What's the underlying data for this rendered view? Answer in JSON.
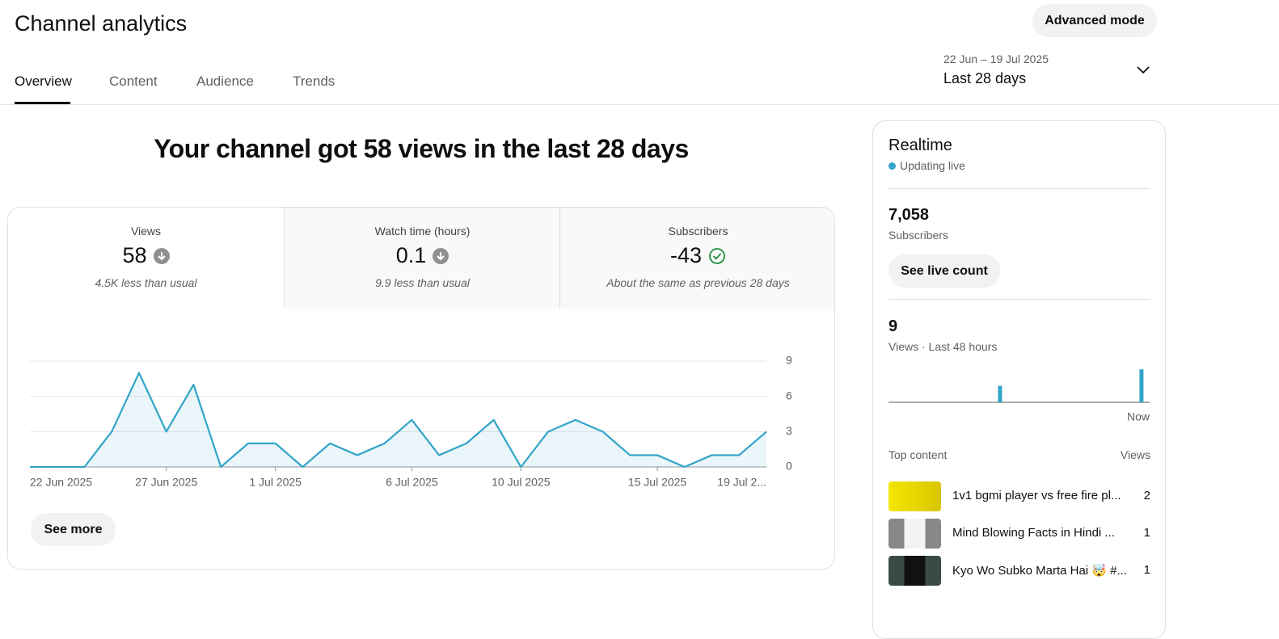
{
  "header": {
    "title": "Channel analytics",
    "advanced_button": "Advanced mode"
  },
  "tabs": [
    "Overview",
    "Content",
    "Audience",
    "Trends"
  ],
  "date_range": {
    "dates": "22 Jun – 19 Jul 2025",
    "label": "Last 28 days"
  },
  "headline": "Your channel got 58 views in the last 28 days",
  "metrics": [
    {
      "label": "Views",
      "value": 58,
      "note": "4.5K less than usual"
    },
    {
      "label": "Watch time (hours)",
      "value": 0.1,
      "note": "9.9 less than usual"
    },
    {
      "label": "Subscribers",
      "value": -43,
      "note": "About the same as previous 28 days"
    }
  ],
  "see_more": "See more",
  "realtime": {
    "title": "Realtime",
    "status": "Updating live",
    "subscribers_count": "7,058",
    "subscribers_label": "Subscribers",
    "live_count_button": "See live count",
    "views_count": 9,
    "views_label": "Views · Last 48 hours",
    "top_content_label": "Top content",
    "top_content_views_label": "Views",
    "top_content": [
      {
        "title": "1v1 bgmi player vs free fire pl...",
        "views": 2
      },
      {
        "title": "Mind Blowing Facts in Hindi ...",
        "views": 1
      },
      {
        "title": "Kyo Wo Subko Marta Hai 🤯 #...",
        "views": 1
      }
    ]
  },
  "chart_data": [
    {
      "type": "line",
      "categories": [
        "22 Jun 2025",
        null,
        null,
        null,
        null,
        "27 Jun 2025",
        null,
        null,
        null,
        "1 Jul 2025",
        null,
        null,
        null,
        null,
        "6 Jul 2025",
        null,
        null,
        null,
        "10 Jul 2025",
        null,
        null,
        null,
        null,
        "15 Jul 2025",
        null,
        null,
        null,
        "19 Jul 2..."
      ],
      "values": [
        0,
        0,
        0,
        3,
        8,
        3,
        7,
        0,
        2,
        2,
        0,
        2,
        1,
        2,
        4,
        1,
        2,
        4,
        0,
        3,
        4,
        3,
        1,
        1,
        0,
        1,
        1,
        3
      ],
      "color": "#32a4c9",
      "ylim": [
        0,
        9
      ],
      "yticks": [
        0,
        3,
        6,
        9
      ],
      "grid": true
    },
    {
      "type": "bar",
      "categories": [
        null,
        null,
        null,
        null,
        null,
        null,
        null,
        null,
        null,
        null,
        null,
        null,
        null,
        null,
        null,
        null,
        null,
        null,
        null,
        null,
        null,
        null,
        null,
        null,
        null,
        null,
        null,
        null,
        null,
        null,
        null,
        null,
        null,
        null,
        null,
        null,
        null,
        null,
        null,
        null,
        null,
        null,
        null,
        null,
        null,
        null,
        null,
        "Now"
      ],
      "values": [
        0,
        0,
        0,
        0,
        0,
        0,
        0,
        0,
        0,
        0,
        0,
        0,
        0,
        0,
        0,
        0,
        0,
        0,
        0,
        0,
        3,
        0,
        0,
        0,
        0,
        0,
        0,
        0,
        0,
        0,
        0,
        0,
        0,
        0,
        0,
        0,
        0,
        0,
        0,
        0,
        0,
        0,
        0,
        0,
        0,
        0,
        6,
        0
      ],
      "color": "#32a4c9"
    }
  ]
}
